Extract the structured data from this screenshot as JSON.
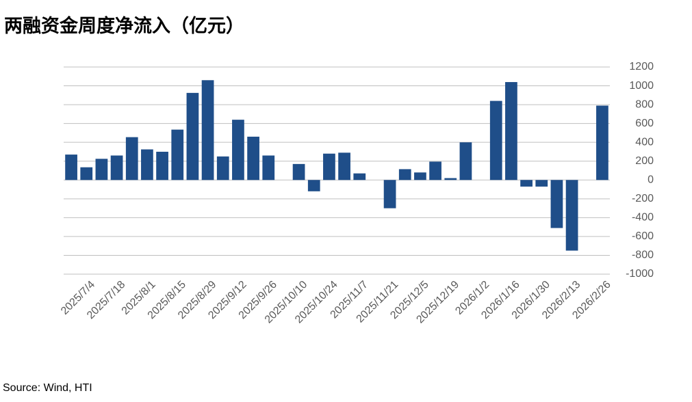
{
  "chart_data": {
    "type": "bar",
    "title": "两融资金周度净流入（亿元）",
    "source": "Source: Wind, HTI",
    "categories": [
      null,
      "2025/7/4",
      null,
      "2025/7/18",
      null,
      "2025/8/1",
      null,
      "2025/8/15",
      null,
      "2025/8/29",
      null,
      "2025/9/12",
      null,
      "2025/9/26",
      null,
      "2025/10/10",
      null,
      "2025/10/24",
      null,
      "2025/11/7",
      null,
      "2025/11/21",
      null,
      "2025/12/5",
      null,
      "2025/12/19",
      null,
      "2026/1/2",
      null,
      "2026/1/16",
      null,
      "2026/1/30",
      null,
      "2026/2/13",
      null,
      "2026/2/26"
    ],
    "values": [
      270,
      135,
      225,
      260,
      455,
      325,
      300,
      535,
      925,
      1060,
      250,
      640,
      460,
      260,
      null,
      170,
      -120,
      280,
      290,
      70,
      null,
      -300,
      115,
      80,
      195,
      20,
      400,
      null,
      840,
      1040,
      -70,
      -70,
      -510,
      -750,
      null,
      790
    ],
    "color": "#1f4e89",
    "ylim": [
      -1000,
      1200
    ],
    "yticks": [
      -1000,
      -800,
      -600,
      -400,
      -200,
      0,
      200,
      400,
      600,
      800,
      1000,
      1200
    ],
    "grid": true
  }
}
